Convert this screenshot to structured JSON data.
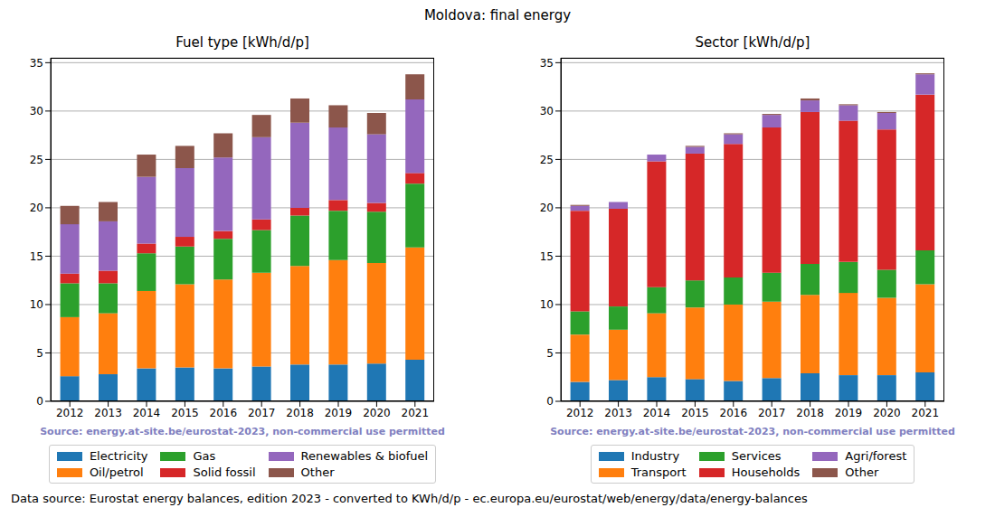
{
  "title": "Moldova: final energy",
  "footer": "Data source: Eurostat energy balances, edition 2023 - converted to KWh/d/p - ec.europa.eu/eurostat/web/energy/data/energy-balances",
  "chart_data": [
    {
      "type": "bar",
      "title": "Fuel type [kWh/d/p]",
      "annotation": "Source: energy.at-site.be/eurostat-2023, non-commercial use permitted",
      "stacked": true,
      "grid": true,
      "categories": [
        "2012",
        "2013",
        "2014",
        "2015",
        "2016",
        "2017",
        "2018",
        "2019",
        "2020",
        "2021"
      ],
      "ylim": [
        0,
        35.5
      ],
      "yticks": [
        0,
        5,
        10,
        15,
        20,
        25,
        30,
        35
      ],
      "series": [
        {
          "name": "Electricity",
          "color": "#1f77b4",
          "values": [
            2.6,
            2.8,
            3.4,
            3.5,
            3.4,
            3.6,
            3.8,
            3.8,
            3.9,
            4.3
          ]
        },
        {
          "name": "Oil/petrol",
          "color": "#ff7f0e",
          "values": [
            6.1,
            6.3,
            8.0,
            8.6,
            9.2,
            9.7,
            10.2,
            10.8,
            10.4,
            11.6
          ]
        },
        {
          "name": "Gas",
          "color": "#2ca02c",
          "values": [
            3.5,
            3.1,
            3.9,
            3.9,
            4.2,
            4.4,
            5.2,
            5.1,
            5.3,
            6.6
          ]
        },
        {
          "name": "Solid fossil",
          "color": "#d62728",
          "values": [
            1.0,
            1.3,
            1.0,
            1.0,
            0.8,
            1.1,
            0.8,
            1.1,
            0.9,
            1.1
          ]
        },
        {
          "name": "Renewables & biofuel",
          "color": "#9467bd",
          "values": [
            5.1,
            5.1,
            6.9,
            7.1,
            7.6,
            8.5,
            8.8,
            7.5,
            7.1,
            7.6
          ]
        },
        {
          "name": "Other",
          "color": "#8c564b",
          "values": [
            1.9,
            2.0,
            2.3,
            2.3,
            2.5,
            2.3,
            2.5,
            2.3,
            2.2,
            2.6
          ]
        }
      ]
    },
    {
      "type": "bar",
      "title": "Sector [kWh/d/p]",
      "annotation": "Source: energy.at-site.be/eurostat-2023, non-commercial use permitted",
      "stacked": true,
      "grid": true,
      "categories": [
        "2012",
        "2013",
        "2014",
        "2015",
        "2016",
        "2017",
        "2018",
        "2019",
        "2020",
        "2021"
      ],
      "ylim": [
        0,
        35.5
      ],
      "yticks": [
        0,
        5,
        10,
        15,
        20,
        25,
        30,
        35
      ],
      "series": [
        {
          "name": "Industry",
          "color": "#1f77b4",
          "values": [
            2.0,
            2.2,
            2.5,
            2.3,
            2.1,
            2.4,
            2.9,
            2.7,
            2.7,
            3.0
          ]
        },
        {
          "name": "Transport",
          "color": "#ff7f0e",
          "values": [
            4.9,
            5.2,
            6.6,
            7.4,
            7.9,
            7.9,
            8.1,
            8.5,
            8.0,
            9.1
          ]
        },
        {
          "name": "Services",
          "color": "#2ca02c",
          "values": [
            2.4,
            2.4,
            2.7,
            2.8,
            2.8,
            3.0,
            3.2,
            3.2,
            2.9,
            3.5
          ]
        },
        {
          "name": "Households",
          "color": "#d62728",
          "values": [
            10.4,
            10.1,
            13.0,
            13.1,
            13.8,
            15.0,
            15.7,
            14.6,
            14.5,
            16.1
          ]
        },
        {
          "name": "Agri/forest",
          "color": "#9467bd",
          "values": [
            0.5,
            0.7,
            0.7,
            0.7,
            1.0,
            1.3,
            1.2,
            1.6,
            1.7,
            2.1
          ]
        },
        {
          "name": "Other",
          "color": "#8c564b",
          "values": [
            0.1,
            0.0,
            0.0,
            0.1,
            0.1,
            0.1,
            0.2,
            0.1,
            0.1,
            0.1
          ]
        }
      ]
    }
  ]
}
